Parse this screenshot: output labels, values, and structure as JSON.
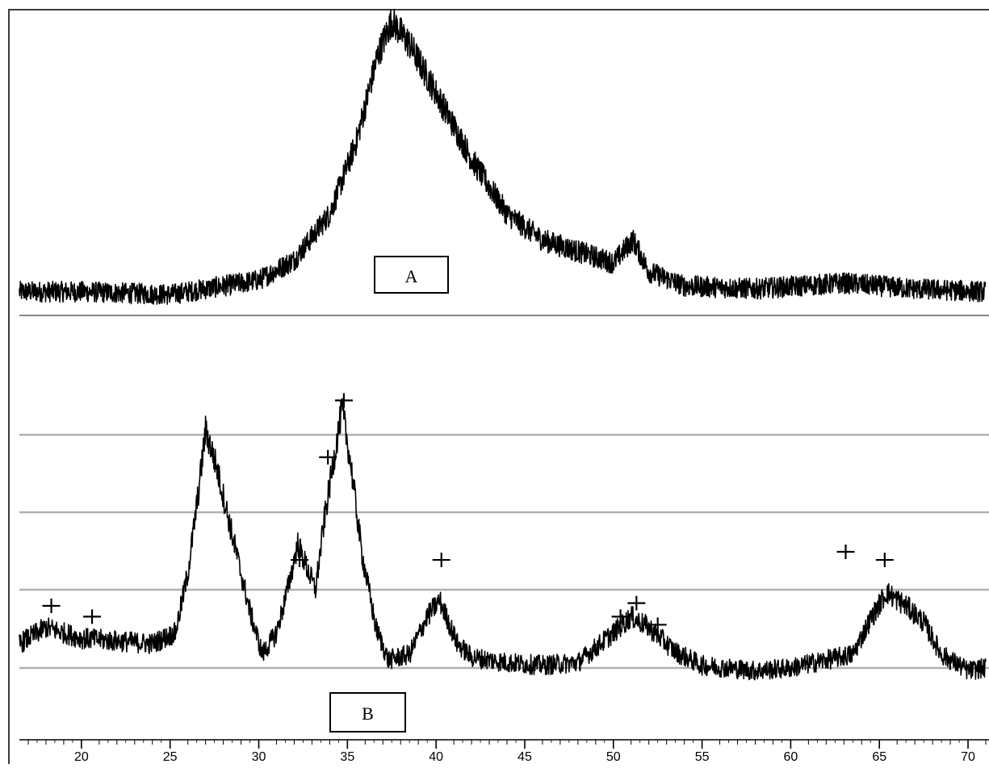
{
  "chart_data": [
    {
      "panel": "A",
      "type": "line",
      "label": "A",
      "xlim": [
        16.5,
        71
      ],
      "grid": false,
      "peak_points": [
        {
          "x": 16.5,
          "y": 0.06
        },
        {
          "x": 20,
          "y": 0.06
        },
        {
          "x": 25,
          "y": 0.05
        },
        {
          "x": 28,
          "y": 0.08
        },
        {
          "x": 30,
          "y": 0.1
        },
        {
          "x": 32,
          "y": 0.17
        },
        {
          "x": 34,
          "y": 0.33
        },
        {
          "x": 35.5,
          "y": 0.58
        },
        {
          "x": 36.7,
          "y": 0.88
        },
        {
          "x": 37.5,
          "y": 1.0
        },
        {
          "x": 38.5,
          "y": 0.92
        },
        {
          "x": 40,
          "y": 0.75
        },
        {
          "x": 42,
          "y": 0.52
        },
        {
          "x": 44,
          "y": 0.33
        },
        {
          "x": 46,
          "y": 0.24
        },
        {
          "x": 48,
          "y": 0.2
        },
        {
          "x": 50,
          "y": 0.16
        },
        {
          "x": 51.1,
          "y": 0.24
        },
        {
          "x": 52,
          "y": 0.13
        },
        {
          "x": 54,
          "y": 0.08
        },
        {
          "x": 58,
          "y": 0.07
        },
        {
          "x": 63,
          "y": 0.09
        },
        {
          "x": 67,
          "y": 0.07
        },
        {
          "x": 71,
          "y": 0.06
        }
      ]
    },
    {
      "panel": "B",
      "type": "line",
      "label": "B",
      "xlim": [
        16.5,
        71
      ],
      "xticks": [
        "20",
        "25",
        "30",
        "35",
        "40",
        "45",
        "50",
        "55",
        "60",
        "65",
        "70"
      ],
      "grid": true,
      "peak_points": [
        {
          "x": 16.5,
          "y": 0.06
        },
        {
          "x": 18,
          "y": 0.12
        },
        {
          "x": 20,
          "y": 0.08
        },
        {
          "x": 22,
          "y": 0.07
        },
        {
          "x": 24,
          "y": 0.06
        },
        {
          "x": 25.3,
          "y": 0.1
        },
        {
          "x": 26,
          "y": 0.32
        },
        {
          "x": 26.6,
          "y": 0.62
        },
        {
          "x": 27,
          "y": 0.85
        },
        {
          "x": 27.6,
          "y": 0.72
        },
        {
          "x": 28.3,
          "y": 0.52
        },
        {
          "x": 29,
          "y": 0.32
        },
        {
          "x": 29.5,
          "y": 0.18
        },
        {
          "x": 30.2,
          "y": 0.02
        },
        {
          "x": 31,
          "y": 0.1
        },
        {
          "x": 31.7,
          "y": 0.28
        },
        {
          "x": 32.2,
          "y": 0.43
        },
        {
          "x": 32.6,
          "y": 0.36
        },
        {
          "x": 33.2,
          "y": 0.26
        },
        {
          "x": 33.7,
          "y": 0.52
        },
        {
          "x": 34.3,
          "y": 0.77
        },
        {
          "x": 34.7,
          "y": 0.93
        },
        {
          "x": 35.2,
          "y": 0.72
        },
        {
          "x": 35.8,
          "y": 0.4
        },
        {
          "x": 36.6,
          "y": 0.12
        },
        {
          "x": 37.3,
          "y": 0.0
        },
        {
          "x": 38.5,
          "y": 0.02
        },
        {
          "x": 39.5,
          "y": 0.16
        },
        {
          "x": 40.2,
          "y": 0.22
        },
        {
          "x": 41.2,
          "y": 0.06
        },
        {
          "x": 42,
          "y": 0.01
        },
        {
          "x": 44,
          "y": -0.01
        },
        {
          "x": 46,
          "y": -0.02
        },
        {
          "x": 48,
          "y": -0.01
        },
        {
          "x": 50,
          "y": 0.1
        },
        {
          "x": 51,
          "y": 0.16
        },
        {
          "x": 52,
          "y": 0.12
        },
        {
          "x": 53.5,
          "y": 0.03
        },
        {
          "x": 55,
          "y": -0.02
        },
        {
          "x": 58,
          "y": -0.04
        },
        {
          "x": 60,
          "y": -0.03
        },
        {
          "x": 62,
          "y": 0.0
        },
        {
          "x": 63.5,
          "y": 0.02
        },
        {
          "x": 64.5,
          "y": 0.15
        },
        {
          "x": 65.4,
          "y": 0.25
        },
        {
          "x": 66.5,
          "y": 0.2
        },
        {
          "x": 67.5,
          "y": 0.14
        },
        {
          "x": 68.5,
          "y": 0.02
        },
        {
          "x": 70,
          "y": -0.04
        },
        {
          "x": 71,
          "y": -0.03
        }
      ],
      "markers": [
        {
          "x": 18.3,
          "y": 0.2
        },
        {
          "x": 20.6,
          "y": 0.16
        },
        {
          "x": 32.3,
          "y": 0.37
        },
        {
          "x": 33.9,
          "y": 0.75
        },
        {
          "x": 34.8,
          "y": 0.96
        },
        {
          "x": 40.3,
          "y": 0.37
        },
        {
          "x": 50.4,
          "y": 0.16
        },
        {
          "x": 51.3,
          "y": 0.21
        },
        {
          "x": 52.5,
          "y": 0.13
        },
        {
          "x": 63.1,
          "y": 0.4
        },
        {
          "x": 65.3,
          "y": 0.37
        }
      ]
    }
  ]
}
